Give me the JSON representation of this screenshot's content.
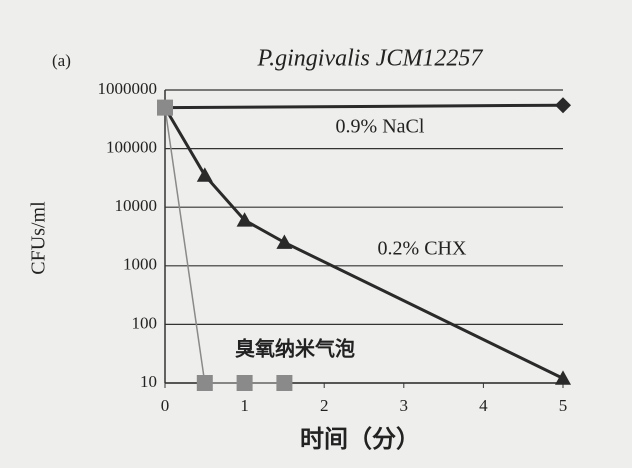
{
  "chart_data": {
    "type": "line",
    "panel_label": "(a)",
    "title": "P.gingivalis JCM12257",
    "x_label": "时间（分）",
    "y_label": "CFUs/ml",
    "log_y": true,
    "grid": true,
    "xlim": [
      0,
      5
    ],
    "xticks": [
      0,
      1,
      2,
      3,
      4,
      5
    ],
    "ylim": [
      10,
      1000000
    ],
    "yticks": [
      10,
      100,
      1000,
      10000,
      100000,
      1000000
    ],
    "series": [
      {
        "name": "0.9% NaCl",
        "color": "#2a2a2a",
        "marker": "diamond",
        "x": [
          0,
          5
        ],
        "values": [
          500000,
          550000
        ]
      },
      {
        "name": "0.2% CHX",
        "color": "#2a2a2a",
        "marker": "triangle",
        "x": [
          0,
          0.5,
          1,
          1.5,
          5
        ],
        "values": [
          500000,
          35000,
          6000,
          2500,
          12
        ]
      },
      {
        "name": "臭氧纳米气泡",
        "color": "#8a8a8a",
        "marker": "square",
        "x": [
          0,
          0.5,
          1,
          1.5
        ],
        "values": [
          500000,
          10,
          10,
          10
        ]
      }
    ]
  }
}
